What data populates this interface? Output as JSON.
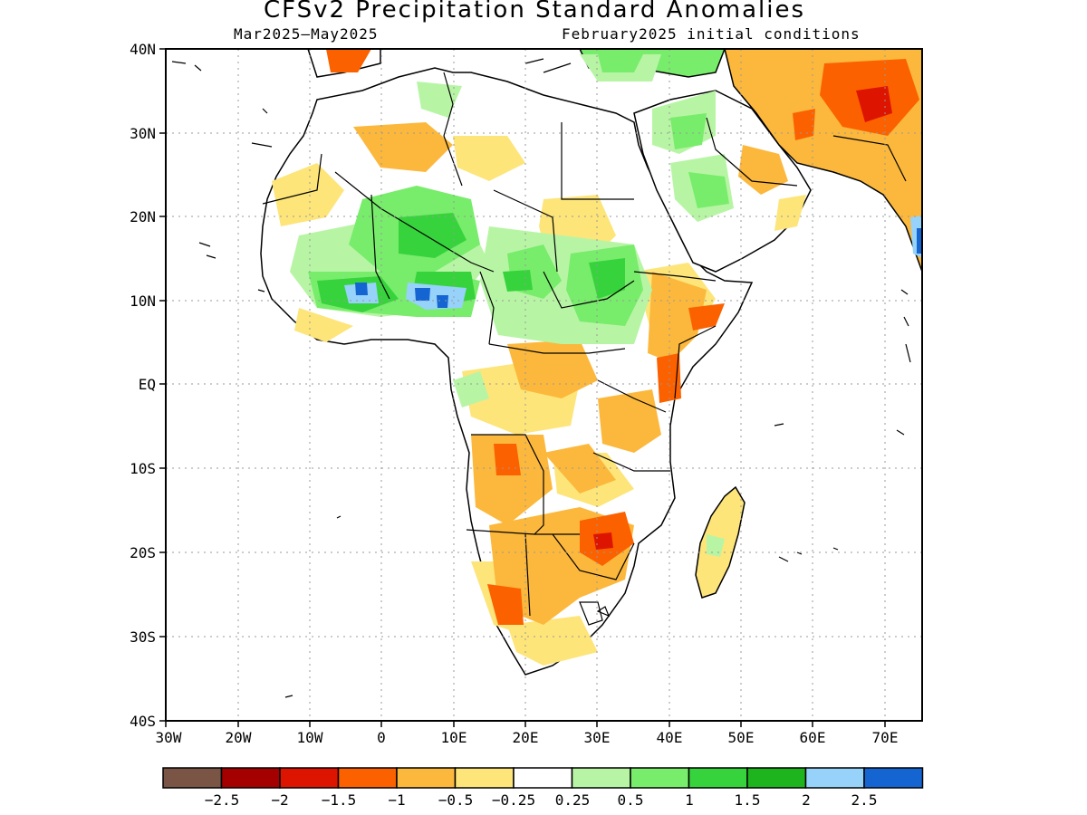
{
  "title": "CFSv2 Precipitation Standard Anomalies",
  "period": "Mar2025—May2025",
  "init": "February2025 initial conditions",
  "lat_labels": [
    "40N",
    "30N",
    "20N",
    "10N",
    "EQ",
    "10S",
    "20S",
    "30S",
    "40S"
  ],
  "lon_labels": [
    "30W",
    "20W",
    "10W",
    "0",
    "10E",
    "20E",
    "30E",
    "40E",
    "50E",
    "60E",
    "70E"
  ],
  "colorbar": {
    "colors": [
      "#7a5545",
      "#a50000",
      "#dd1500",
      "#fc6100",
      "#fcb83c",
      "#fde57a",
      "#ffffff",
      "#b7f5a5",
      "#78ec6b",
      "#37d33c",
      "#1eb41e",
      "#96d2fa",
      "#1464d2"
    ],
    "labels": [
      "−2.5",
      "−2",
      "−1.5",
      "−1",
      "−0.5",
      "−0.25",
      "0.25",
      "0.5",
      "1",
      "1.5",
      "2",
      "2.5"
    ]
  }
}
